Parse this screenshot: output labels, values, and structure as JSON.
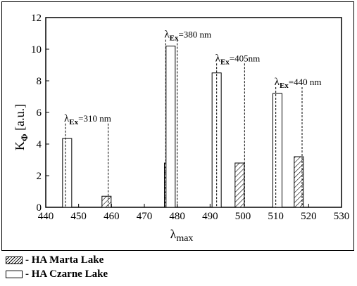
{
  "chart_data": {
    "type": "bar",
    "xlabel_main": "λ",
    "xlabel_sub": "max",
    "ylabel_main": "K",
    "ylabel_sub": "Φ",
    "ylabel_unit": " [a.u.]",
    "xlim": [
      440,
      530
    ],
    "ylim": [
      0,
      12
    ],
    "xticks": [
      440,
      450,
      460,
      470,
      480,
      490,
      500,
      510,
      520,
      530
    ],
    "yticks": [
      0,
      2,
      4,
      6,
      8,
      10,
      12
    ],
    "grid": false,
    "series": [
      {
        "name": "HA Marta Lake",
        "fill": "hatched",
        "points": [
          {
            "x": 458.5,
            "y": 0.7
          },
          {
            "x": 477.5,
            "y": 2.8
          },
          {
            "x": 499.0,
            "y": 2.8
          },
          {
            "x": 517.0,
            "y": 3.2
          }
        ]
      },
      {
        "name": "HA Czarne Lake",
        "fill": "open",
        "points": [
          {
            "x": 446.5,
            "y": 4.35
          },
          {
            "x": 478.0,
            "y": 10.2
          },
          {
            "x": 492.0,
            "y": 8.5
          },
          {
            "x": 510.5,
            "y": 7.2
          }
        ]
      }
    ],
    "annotations": [
      {
        "main": "λ",
        "sub": "Ex",
        "text": "=310 nm",
        "line_x": [
          446.0,
          459.0
        ],
        "line_top": 5.3
      },
      {
        "main": "λ",
        "sub": "Ex",
        "text": "=380 nm",
        "line_x": [
          476.5,
          480.0
        ],
        "line_top": 10.6
      },
      {
        "main": "λ",
        "sub": "Ex",
        "text": "=405nm",
        "line_x": [
          492.0,
          500.5
        ],
        "line_top": 9.1
      },
      {
        "main": "λ",
        "sub": "Ex",
        "text": "=440 nm",
        "line_x": [
          510.0,
          518.0
        ],
        "line_top": 7.6
      }
    ]
  },
  "legend": [
    {
      "label": "- HA Marta Lake",
      "fill": "hatched"
    },
    {
      "label": "- HA Czarne Lake",
      "fill": "open"
    }
  ]
}
